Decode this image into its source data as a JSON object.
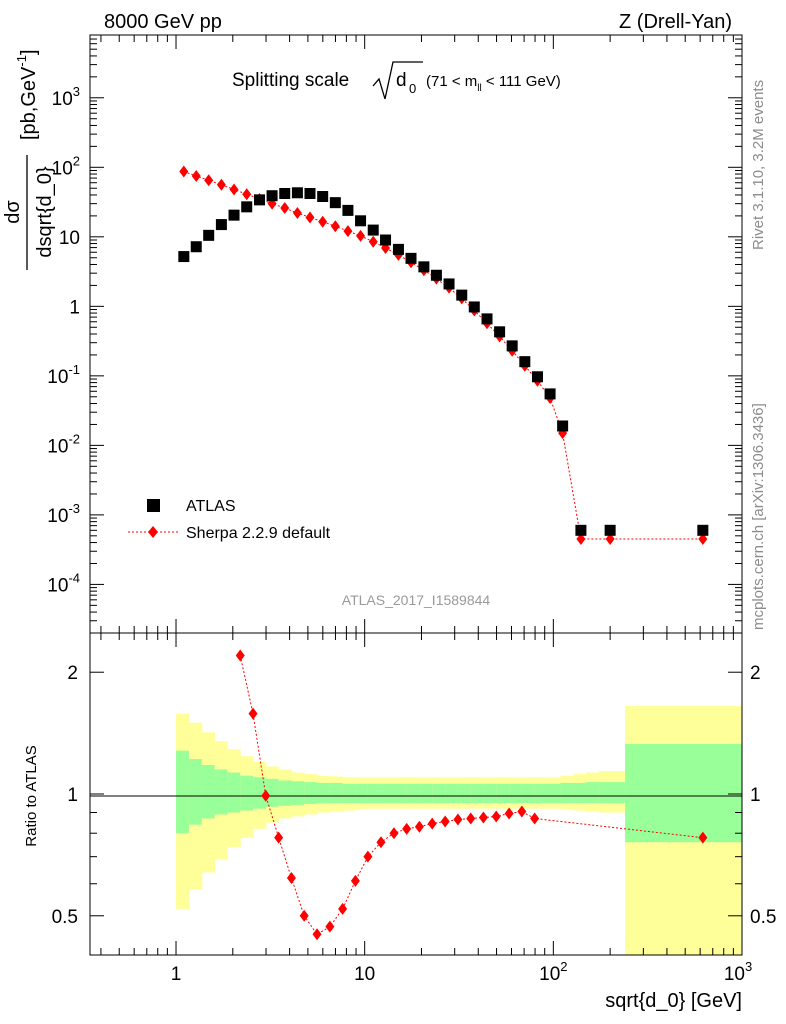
{
  "header": {
    "left": "8000 GeV pp",
    "right": "Z (Drell-Yan)"
  },
  "side_labels": {
    "rivet": "Rivet 3.1.10,  3.2M events",
    "mcplots": "mcplots.cern.ch [arXiv:1306.3436]"
  },
  "colors": {
    "data": "#000000",
    "mc": "#ff0000",
    "band_inner": "#99ff99",
    "band_outer": "#ffff99"
  },
  "chart_data": [
    {
      "panel": "main",
      "type": "scatter",
      "title": "Splitting scale",
      "title_sqrt": "d",
      "title_sqrt_sub": "0",
      "title_range": "(71 < m",
      "title_range_sub": "ll",
      "title_range_end": " < 111 GeV)",
      "ylabel": "dσ/dsqrt{d_0} [pb,GeV⁻¹]",
      "ylabel_num": "dσ",
      "ylabel_den": "dsqrt{d_0}",
      "ylabel_unit": "[pb,GeV",
      "ylabel_unit_sup": "-1",
      "ylabel_unit_end": "]",
      "xscale": "log",
      "yscale": "log",
      "xlim": [
        0.35,
        1000
      ],
      "ylim": [
        2e-05,
        8000
      ],
      "ytick_labels": [
        {
          "base": "10",
          "exp": "-4"
        },
        {
          "base": "10",
          "exp": "-3"
        },
        {
          "base": "10",
          "exp": "-2"
        },
        {
          "base": "10",
          "exp": "-1"
        },
        {
          "base": "1",
          "exp": ""
        },
        {
          "base": "10",
          "exp": ""
        },
        {
          "base": "10",
          "exp": "2"
        },
        {
          "base": "10",
          "exp": "3"
        }
      ],
      "analysis_id": "ATLAS_2017_I1589844",
      "legend": {
        "position": "bottom-left",
        "entries": [
          "ATLAS",
          "Sherpa 2.2.9 default"
        ]
      },
      "series": [
        {
          "name": "ATLAS",
          "marker": "square",
          "x": [
            1.1,
            1.28,
            1.49,
            1.74,
            2.03,
            2.37,
            2.77,
            3.23,
            3.77,
            4.4,
            5.13,
            5.99,
            6.99,
            8.15,
            9.51,
            11.1,
            12.9,
            15.1,
            17.6,
            20.6,
            24.0,
            28.0,
            32.7,
            38.1,
            44.5,
            51.9,
            60.5,
            70.6,
            82.4,
            96.1,
            112,
            140,
            200,
            620
          ],
          "y": [
            5.2,
            7.2,
            10.5,
            15,
            20.5,
            27,
            34,
            39,
            42,
            43,
            42,
            38,
            31,
            24,
            17,
            12.5,
            9,
            6.6,
            4.9,
            3.7,
            2.8,
            2.1,
            1.45,
            0.98,
            0.66,
            0.43,
            0.27,
            0.16,
            0.097,
            0.055,
            0.019,
            0.0006,
            0.0006,
            0.0006
          ]
        },
        {
          "name": "Sherpa 2.2.9 default",
          "marker": "diamond",
          "line": "dotted",
          "x": [
            1.1,
            1.28,
            1.49,
            1.74,
            2.03,
            2.37,
            2.77,
            3.23,
            3.77,
            4.4,
            5.13,
            5.99,
            6.99,
            8.15,
            9.51,
            11.1,
            12.9,
            15.1,
            17.6,
            20.6,
            24.0,
            28.0,
            32.7,
            38.1,
            44.5,
            51.9,
            60.5,
            70.6,
            82.4,
            96.1,
            112,
            140,
            200,
            620
          ],
          "y": [
            87,
            75,
            65,
            56,
            48,
            41,
            35,
            30,
            26,
            22,
            19,
            16.5,
            14.2,
            12.1,
            10.3,
            8.5,
            6.9,
            5.5,
            4.3,
            3.3,
            2.5,
            1.85,
            1.3,
            0.87,
            0.57,
            0.37,
            0.23,
            0.14,
            0.085,
            0.048,
            0.015,
            0.00045,
            0.00045,
            0.00045
          ]
        }
      ]
    },
    {
      "panel": "ratio",
      "type": "scatter",
      "ylabel": "Ratio to ATLAS",
      "xlabel": "sqrt{d_0} [GeV]",
      "xscale": "log",
      "yscale": "log",
      "xlim": [
        0.35,
        1000
      ],
      "ylim": [
        0.4,
        2.5
      ],
      "yticks": [
        0.5,
        1,
        2
      ],
      "ytick_labels": [
        "0.5",
        "1",
        "2"
      ],
      "xtick_labels": [
        {
          "base": "1",
          "exp": ""
        },
        {
          "base": "10",
          "exp": ""
        },
        {
          "base": "10",
          "exp": "2"
        },
        {
          "base": "10",
          "exp": "3"
        }
      ],
      "bands": {
        "edges": [
          1.0,
          1.17,
          1.37,
          1.6,
          1.87,
          2.19,
          2.56,
          2.99,
          3.5,
          4.09,
          4.78,
          5.59,
          6.54,
          7.64,
          8.93,
          10.4,
          12.2,
          14.3,
          16.7,
          19.5,
          22.8,
          26.7,
          31.2,
          36.5,
          42.6,
          49.8,
          58.3,
          68.1,
          79.6,
          93.1,
          109,
          127,
          149,
          174,
          240,
          1000
        ],
        "inner_low": [
          0.8,
          0.84,
          0.87,
          0.89,
          0.9,
          0.91,
          0.92,
          0.93,
          0.935,
          0.94,
          0.945,
          0.95,
          0.95,
          0.95,
          0.95,
          0.95,
          0.95,
          0.95,
          0.95,
          0.95,
          0.95,
          0.95,
          0.95,
          0.95,
          0.95,
          0.95,
          0.95,
          0.95,
          0.95,
          0.95,
          0.95,
          0.95,
          0.95,
          0.95,
          0.76
        ],
        "inner_high": [
          1.28,
          1.22,
          1.18,
          1.15,
          1.13,
          1.11,
          1.1,
          1.09,
          1.08,
          1.075,
          1.07,
          1.065,
          1.065,
          1.06,
          1.06,
          1.06,
          1.06,
          1.06,
          1.06,
          1.06,
          1.06,
          1.06,
          1.06,
          1.06,
          1.06,
          1.06,
          1.06,
          1.06,
          1.06,
          1.06,
          1.065,
          1.065,
          1.07,
          1.07,
          1.33
        ],
        "outer_low": [
          0.52,
          0.58,
          0.64,
          0.69,
          0.74,
          0.78,
          0.82,
          0.85,
          0.87,
          0.88,
          0.89,
          0.9,
          0.905,
          0.91,
          0.915,
          0.92,
          0.92,
          0.92,
          0.92,
          0.92,
          0.92,
          0.92,
          0.92,
          0.92,
          0.92,
          0.92,
          0.92,
          0.92,
          0.92,
          0.92,
          0.915,
          0.91,
          0.905,
          0.9,
          0.38
        ],
        "outer_high": [
          1.58,
          1.5,
          1.42,
          1.35,
          1.29,
          1.24,
          1.2,
          1.17,
          1.15,
          1.13,
          1.12,
          1.11,
          1.105,
          1.1,
          1.1,
          1.1,
          1.1,
          1.1,
          1.1,
          1.1,
          1.1,
          1.1,
          1.1,
          1.1,
          1.1,
          1.1,
          1.1,
          1.1,
          1.1,
          1.1,
          1.11,
          1.12,
          1.13,
          1.14,
          1.65
        ]
      },
      "series": [
        {
          "name": "Sherpa 2.2.9 default / ATLAS",
          "marker": "diamond",
          "line": "dotted",
          "x": [
            2.19,
            2.56,
            2.99,
            3.5,
            4.09,
            4.78,
            5.59,
            6.54,
            7.64,
            8.93,
            10.4,
            12.2,
            14.3,
            16.7,
            19.5,
            22.8,
            26.7,
            31.2,
            36.5,
            42.6,
            49.8,
            58.3,
            68.1,
            79.6,
            620
          ],
          "y": [
            2.2,
            1.58,
            0.99,
            0.78,
            0.62,
            0.5,
            0.45,
            0.47,
            0.52,
            0.61,
            0.7,
            0.76,
            0.8,
            0.82,
            0.83,
            0.845,
            0.855,
            0.865,
            0.87,
            0.875,
            0.88,
            0.895,
            0.905,
            0.87,
            0.78
          ]
        }
      ]
    }
  ]
}
